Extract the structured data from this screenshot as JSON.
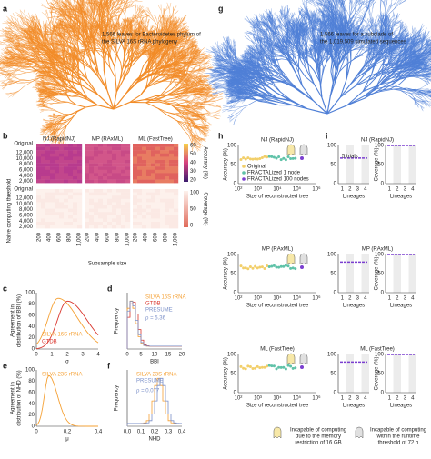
{
  "a": {
    "label": "a",
    "text": [
      "1,566 leaves for Bacteroidetes phylum of",
      "the SILVA 16S rRNA phylogeny"
    ]
  },
  "g": {
    "label": "g",
    "text": [
      "1,566 leaves for a subclade of",
      "the 1,019,509 simulated sequences"
    ]
  },
  "b": {
    "label": "b",
    "methods": [
      "NJ (RapidNJ)",
      "MP (RAxML)",
      "ML (FastTree)"
    ],
    "original": "Original",
    "yticks": [
      "12,000",
      "10,000",
      "8,000",
      "6,000",
      "4,000",
      "2,000"
    ],
    "xticks": [
      "200",
      "400",
      "600",
      "800",
      "1,000"
    ],
    "xlabel": "Subsample size",
    "ylabel": "Naive computing threshold",
    "accuracy": {
      "label": "Accuracy (%)",
      "ticks": [
        "60",
        "50",
        "40",
        "30",
        "20"
      ]
    },
    "coverage": {
      "label": "Coverage (%)",
      "ticks": [
        "100",
        "50",
        "0"
      ]
    }
  },
  "c": {
    "label": "c",
    "ylabel": [
      "Agreement in",
      "distribution of BBI (%)"
    ],
    "xlabel": "σ",
    "xticks": [
      "0",
      "1",
      "2",
      "3",
      "4"
    ],
    "yticks": [
      "0",
      "20",
      "40",
      "60",
      "80",
      "100"
    ],
    "legend": [
      "SILVA 16S rRNA",
      "GTDB"
    ]
  },
  "d": {
    "label": "d",
    "ylabel": "Frequency",
    "xlabel": "BBI",
    "xticks": [
      "0",
      "5",
      "10",
      "15",
      "20"
    ],
    "legend": [
      "SILVA 16S rRNA",
      "GTDB",
      "PRESUME"
    ],
    "rho": "ρ = 5.36"
  },
  "e": {
    "label": "e",
    "ylabel": [
      "Agreement in",
      "distribution of NHD (%)"
    ],
    "xlabel": "μ",
    "xticks": [
      "0",
      "0.2",
      "0.4"
    ],
    "yticks": [
      "0",
      "20",
      "40",
      "60",
      "80",
      "100"
    ],
    "legend": [
      "SILVA 23S rRNA"
    ]
  },
  "f": {
    "label": "f",
    "ylabel": "Frequency",
    "xlabel": "NHD",
    "xticks": [
      "0.0",
      "0.1",
      "0.2",
      "0.3",
      "0.4"
    ],
    "legend": [
      "SILVA 23S rRNA",
      "PRESUME"
    ],
    "rho": "ρ = 0.077"
  },
  "h": {
    "label": "h",
    "titles": [
      "NJ (RapidNJ)",
      "MP (RAxML)",
      "ML (FastTree)"
    ],
    "ylabel": "Accuracy (%)",
    "yticks": [
      "0",
      "50",
      "100"
    ],
    "xlabel": "Size of reconstructed tree",
    "xticks": [
      "10²",
      "10³",
      "10⁴",
      "10⁵",
      "10⁶"
    ],
    "legend": [
      "Original",
      "FRACTALized 1 node",
      "FRACTALized 100 nodes"
    ]
  },
  "i": {
    "label": "i",
    "titles": [
      "NJ (RapidNJ)",
      "MP (RAxML)",
      "ML (FastTree)"
    ],
    "ylabel": "Coverage (%)",
    "yticks": [
      "0",
      "50",
      "100"
    ],
    "xlabel": "Lineages",
    "xticks": [
      "1",
      "2",
      "3",
      "4"
    ],
    "trials": "5 trials"
  },
  "notes": [
    [
      "Incapable of computing",
      "due to the memory",
      "restriction of 16 GB"
    ],
    [
      "Incapable of computing",
      "within the runtime",
      "threshold of 72 h"
    ]
  ]
}
